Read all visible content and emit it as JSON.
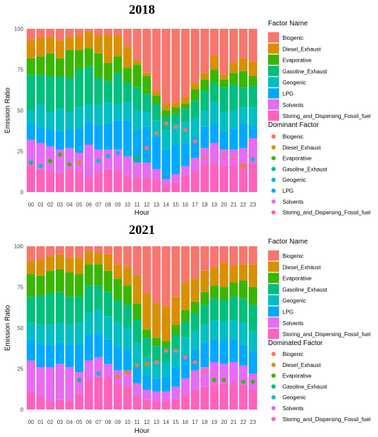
{
  "colors": {
    "Biogenic": "#F8766D",
    "Diesel_Exhaust": "#D89000",
    "Evaporative": "#39B600",
    "Gasoline_Exhaust": "#00BF7D",
    "Geogenic": "#00BFC4",
    "LPG": "#00A9FF",
    "Solvents": "#E76BF3",
    "Storing_and_Dispersing_Fossil_fuel": "#FF62BC"
  },
  "chart_data": [
    {
      "type": "bar",
      "stacked": true,
      "title": "2018",
      "xlabel": "Hour",
      "ylabel": "Emission Ratio",
      "ylim": [
        0,
        100
      ],
      "yticks": [
        0,
        25,
        50,
        75,
        100
      ],
      "categories": [
        "00",
        "01",
        "02",
        "03",
        "04",
        "05",
        "06",
        "07",
        "08",
        "09",
        "10",
        "11",
        "12",
        "13",
        "14",
        "15",
        "16",
        "17",
        "18",
        "19",
        "20",
        "21",
        "22",
        "23"
      ],
      "legend_title": "Factor Name",
      "legend_position": "right",
      "series": [
        {
          "name": "Storing_and_Dispersing_Fossil_fuel",
          "values": [
            16,
            14,
            13,
            12,
            13,
            12,
            9,
            12,
            14,
            13,
            10,
            9,
            9,
            8,
            4,
            6,
            10,
            13,
            17,
            18,
            16,
            16,
            18,
            17
          ]
        },
        {
          "name": "Solvents",
          "values": [
            16,
            16,
            15,
            14,
            14,
            12,
            20,
            14,
            12,
            13,
            12,
            9,
            9,
            6,
            4,
            5,
            6,
            8,
            10,
            12,
            10,
            10,
            9,
            16
          ]
        },
        {
          "name": "LPG",
          "values": [
            10,
            10,
            10,
            11,
            11,
            15,
            14,
            15,
            16,
            18,
            22,
            20,
            22,
            20,
            18,
            18,
            14,
            13,
            13,
            12,
            11,
            13,
            15,
            8
          ]
        },
        {
          "name": "Geogenic",
          "values": [
            8,
            14,
            11,
            14,
            11,
            13,
            11,
            12,
            13,
            10,
            11,
            12,
            9,
            10,
            12,
            13,
            13,
            11,
            10,
            13,
            12,
            11,
            10,
            11
          ]
        },
        {
          "name": "Gasoline_Exhaust",
          "values": [
            22,
            18,
            22,
            20,
            21,
            23,
            23,
            17,
            13,
            19,
            12,
            14,
            11,
            10,
            8,
            6,
            8,
            11,
            12,
            12,
            15,
            16,
            12,
            13
          ]
        },
        {
          "name": "Evaporative",
          "values": [
            10,
            11,
            14,
            11,
            17,
            12,
            11,
            15,
            11,
            10,
            9,
            14,
            11,
            5,
            4,
            4,
            3,
            7,
            7,
            8,
            5,
            7,
            10,
            6
          ]
        },
        {
          "name": "Diesel_Exhaust",
          "values": [
            11,
            12,
            10,
            11,
            8,
            9,
            10,
            11,
            17,
            13,
            13,
            3,
            2,
            3,
            4,
            3,
            4,
            4,
            4,
            9,
            3,
            6,
            8,
            9
          ]
        },
        {
          "name": "Biogenic",
          "values": [
            7,
            5,
            5,
            7,
            5,
            4,
            2,
            4,
            4,
            4,
            11,
            19,
            27,
            38,
            46,
            45,
            42,
            33,
            27,
            16,
            28,
            21,
            18,
            20
          ]
        }
      ],
      "dominant_legend_title": "Dominant Factor",
      "dominant_legend_items": [
        "Biogenic",
        "Diesel_Exhaust",
        "Evaporative",
        "Gasoline_Exhaust",
        "Geogenic",
        "LPG",
        "Solvents",
        "Storing_and_Dispersing_Fossil_fuel"
      ],
      "dominant_points": [
        {
          "x": "00",
          "y": 18,
          "factor": "Gasoline_Exhaust"
        },
        {
          "x": "01",
          "y": 16,
          "factor": "Geogenic"
        },
        {
          "x": "02",
          "y": 19,
          "factor": "Evaporative"
        },
        {
          "x": "03",
          "y": 23,
          "factor": "Evaporative"
        },
        {
          "x": "04",
          "y": 17,
          "factor": "Evaporative"
        },
        {
          "x": "05",
          "y": 18,
          "factor": "Diesel_Exhaust"
        },
        {
          "x": "06",
          "y": 19,
          "factor": "Solvents"
        },
        {
          "x": "07",
          "y": 19,
          "factor": "Geogenic"
        },
        {
          "x": "08",
          "y": 22,
          "factor": "Geogenic"
        },
        {
          "x": "09",
          "y": 24,
          "factor": "Geogenic"
        },
        {
          "x": "10",
          "y": 23,
          "factor": "Geogenic"
        },
        {
          "x": "11",
          "y": 20,
          "factor": "Evaporative"
        },
        {
          "x": "12",
          "y": 27,
          "factor": "Biogenic"
        },
        {
          "x": "13",
          "y": 36,
          "factor": "Biogenic"
        },
        {
          "x": "14",
          "y": 42,
          "factor": "Biogenic"
        },
        {
          "x": "15",
          "y": 40,
          "factor": "Biogenic"
        },
        {
          "x": "16",
          "y": 38,
          "factor": "Biogenic"
        },
        {
          "x": "17",
          "y": 31,
          "factor": "Biogenic"
        },
        {
          "x": "18",
          "y": 21,
          "factor": "Biogenic"
        },
        {
          "x": "19",
          "y": 18,
          "factor": "Solvents"
        },
        {
          "x": "20",
          "y": 23,
          "factor": "Biogenic"
        },
        {
          "x": "21",
          "y": 21,
          "factor": "Biogenic"
        },
        {
          "x": "22",
          "y": 16,
          "factor": "Diesel_Exhaust"
        },
        {
          "x": "23",
          "y": 20,
          "factor": "Geogenic"
        }
      ]
    },
    {
      "type": "bar",
      "stacked": true,
      "title": "2021",
      "xlabel": "Hour",
      "ylabel": "Emission Ratio",
      "ylim": [
        0,
        100
      ],
      "yticks": [
        0,
        25,
        50,
        75,
        100
      ],
      "categories": [
        "00",
        "01",
        "02",
        "03",
        "04",
        "05",
        "06",
        "07",
        "08",
        "09",
        "10",
        "11",
        "12",
        "13",
        "14",
        "15",
        "16",
        "17",
        "18",
        "19",
        "20",
        "21",
        "22",
        "23"
      ],
      "legend_title": "Factor Name",
      "legend_position": "right",
      "series": [
        {
          "name": "Storing_and_Dispersing_Fossil_fuel",
          "values": [
            11,
            8,
            5,
            6,
            5,
            10,
            18,
            20,
            19,
            16,
            14,
            8,
            6,
            5,
            5,
            6,
            9,
            12,
            14,
            15,
            16,
            15,
            15,
            12
          ]
        },
        {
          "name": "Solvents",
          "values": [
            19,
            18,
            21,
            22,
            21,
            13,
            12,
            12,
            9,
            8,
            10,
            8,
            6,
            6,
            6,
            8,
            10,
            12,
            12,
            14,
            12,
            14,
            12,
            10
          ]
        },
        {
          "name": "LPG",
          "values": [
            13,
            14,
            14,
            13,
            14,
            17,
            16,
            15,
            15,
            15,
            13,
            12,
            9,
            8,
            9,
            12,
            14,
            13,
            15,
            14,
            14,
            14,
            13,
            14
          ]
        },
        {
          "name": "Geogenic",
          "values": [
            10,
            12,
            12,
            12,
            12,
            13,
            13,
            14,
            14,
            14,
            13,
            13,
            11,
            10,
            9,
            11,
            11,
            11,
            11,
            12,
            12,
            12,
            13,
            12
          ]
        },
        {
          "name": "Gasoline_Exhaust",
          "values": [
            16,
            18,
            19,
            19,
            17,
            16,
            17,
            15,
            15,
            14,
            14,
            14,
            12,
            10,
            9,
            9,
            10,
            11,
            12,
            13,
            13,
            14,
            15,
            16
          ]
        },
        {
          "name": "Evaporative",
          "values": [
            14,
            12,
            14,
            14,
            15,
            14,
            13,
            13,
            13,
            13,
            12,
            10,
            5,
            5,
            4,
            6,
            7,
            7,
            8,
            8,
            8,
            9,
            11,
            11
          ]
        },
        {
          "name": "Diesel_Exhaust",
          "values": [
            8,
            10,
            9,
            9,
            9,
            10,
            8,
            7,
            10,
            9,
            11,
            17,
            22,
            21,
            21,
            17,
            17,
            14,
            13,
            11,
            15,
            10,
            10,
            14
          ]
        },
        {
          "name": "Biogenic",
          "values": [
            9,
            8,
            6,
            5,
            7,
            7,
            3,
            4,
            5,
            11,
            13,
            18,
            29,
            35,
            37,
            31,
            22,
            20,
            15,
            13,
            10,
            12,
            11,
            11
          ]
        }
      ],
      "dominant_legend_title": "Dominated Factor",
      "dominant_legend_items": [
        "Biogenic",
        "Diesel_Exhaust",
        "Evaporative",
        "Gasoline_Exhaust",
        "Geogenic",
        "Solvents",
        "Storing_and_Dispersing_Fossil_fuel"
      ],
      "dominant_points": [
        {
          "x": "00",
          "y": 19,
          "factor": "Solvents"
        },
        {
          "x": "01",
          "y": 18,
          "factor": "Solvents"
        },
        {
          "x": "02",
          "y": 20,
          "factor": "Solvents"
        },
        {
          "x": "03",
          "y": 22,
          "factor": "Solvents"
        },
        {
          "x": "04",
          "y": 21,
          "factor": "Solvents"
        },
        {
          "x": "05",
          "y": 18,
          "factor": "Gasoline_Exhaust"
        },
        {
          "x": "06",
          "y": 18,
          "factor": "Storing_and_Dispersing_Fossil_fuel"
        },
        {
          "x": "07",
          "y": 22,
          "factor": "Geogenic"
        },
        {
          "x": "08",
          "y": 19,
          "factor": "Storing_and_Dispersing_Fossil_fuel"
        },
        {
          "x": "09",
          "y": 20,
          "factor": "Diesel_Exhaust"
        },
        {
          "x": "10",
          "y": 23,
          "factor": "Diesel_Exhaust"
        },
        {
          "x": "11",
          "y": 27,
          "factor": "Diesel_Exhaust"
        },
        {
          "x": "12",
          "y": 28,
          "factor": "Diesel_Exhaust"
        },
        {
          "x": "13",
          "y": 29,
          "factor": "Biogenic"
        },
        {
          "x": "14",
          "y": 36,
          "factor": "Biogenic"
        },
        {
          "x": "15",
          "y": 36,
          "factor": "Biogenic"
        },
        {
          "x": "16",
          "y": 32,
          "factor": "Biogenic"
        },
        {
          "x": "17",
          "y": 29,
          "factor": "Biogenic"
        },
        {
          "x": "18",
          "y": 23,
          "factor": "Biogenic"
        },
        {
          "x": "19",
          "y": 18,
          "factor": "Evaporative"
        },
        {
          "x": "20",
          "y": 18,
          "factor": "Evaporative"
        },
        {
          "x": "21",
          "y": 16,
          "factor": "Storing_and_Dispersing_Fossil_fuel"
        },
        {
          "x": "22",
          "y": 17,
          "factor": "Evaporative"
        },
        {
          "x": "23",
          "y": 17,
          "factor": "Evaporative"
        }
      ]
    }
  ]
}
